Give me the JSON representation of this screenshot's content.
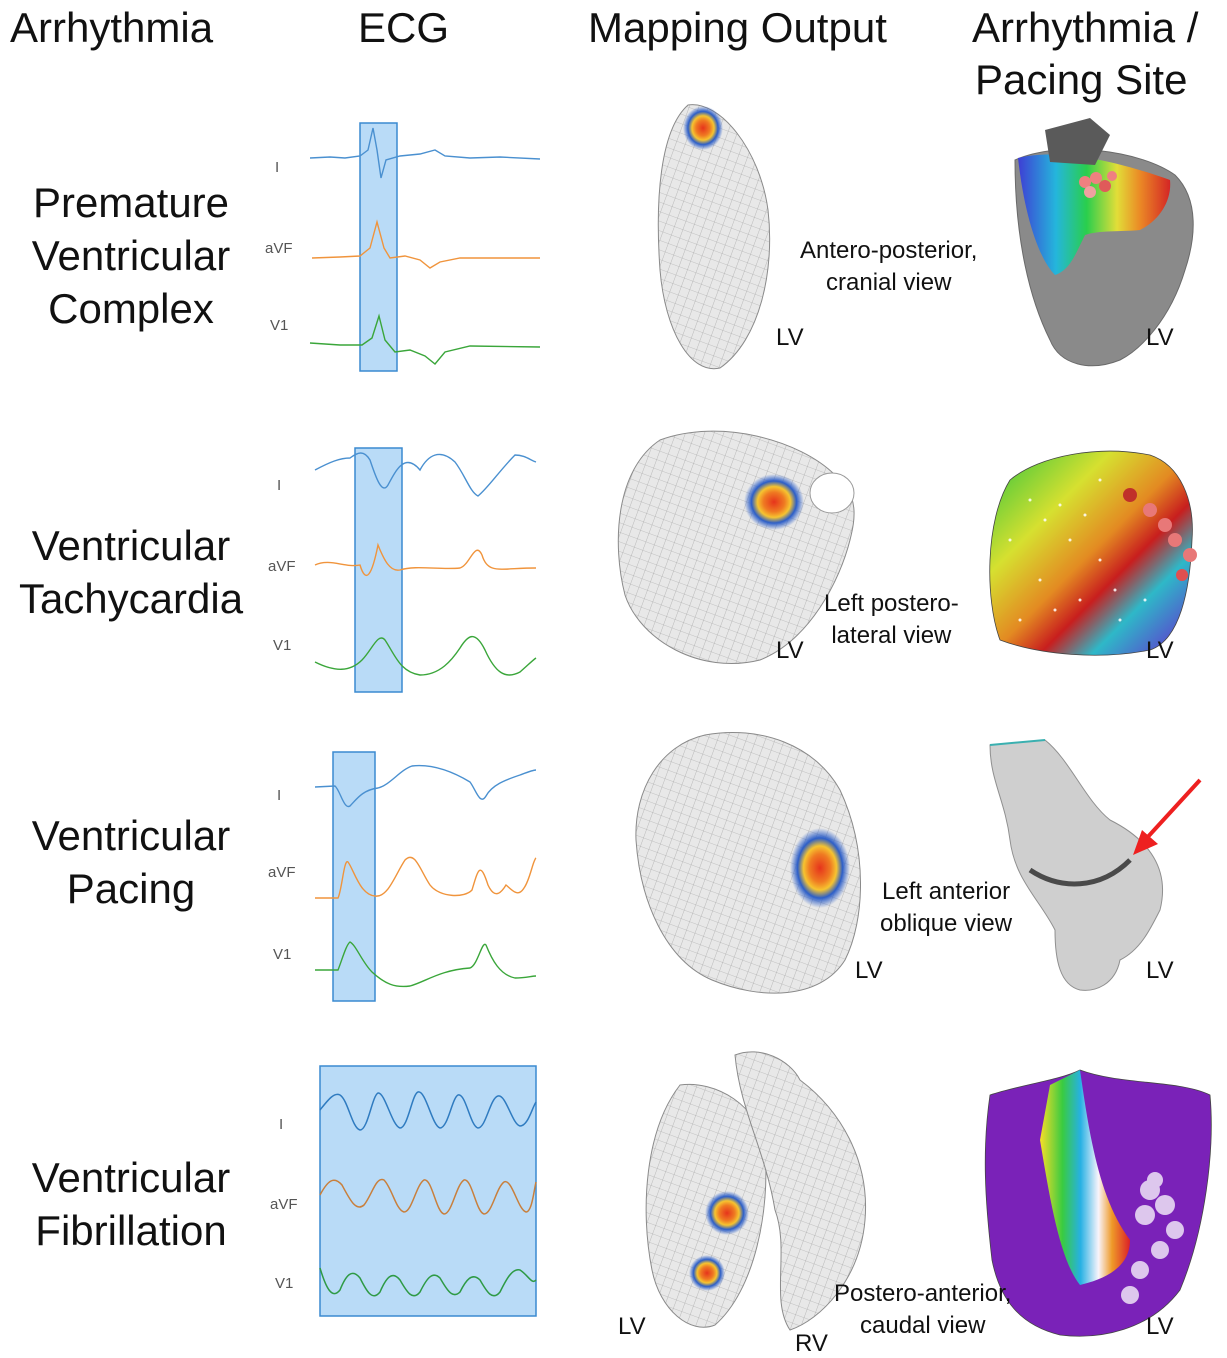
{
  "headers": {
    "arrhythmia": "Arrhythmia",
    "ecg": "ECG",
    "mapping": "Mapping Output",
    "site_line1": "Arrhythmia /",
    "site_line2": "Pacing Site"
  },
  "lead_names": [
    "I",
    "aVF",
    "V1"
  ],
  "colors": {
    "lead_I": "#4a90d0",
    "lead_aVF": "#f0943c",
    "lead_V1": "#3aa63a",
    "highlight_fill": "#a8d2f5",
    "highlight_stroke": "#3a8ad0",
    "mesh": "#d9d9d9",
    "hotspot_core": "#e6341c",
    "hotspot_mid": "#f6c430",
    "hotspot_edge": "#2c5ec8"
  },
  "rows": [
    {
      "title_lines": [
        "Premature",
        "Ventricular",
        "Complex"
      ],
      "view_lines": [
        "Antero-posterior,",
        "cranial view"
      ],
      "mapping_label": "LV",
      "site_label": "LV"
    },
    {
      "title_lines": [
        "Ventricular",
        "Tachycardia"
      ],
      "view_lines": [
        "Left postero-",
        "lateral view"
      ],
      "mapping_label": "LV",
      "site_label": "LV"
    },
    {
      "title_lines": [
        "Ventricular",
        "Pacing"
      ],
      "view_lines": [
        "Left anterior",
        "oblique view"
      ],
      "mapping_label": "LV",
      "site_label": "LV"
    },
    {
      "title_lines": [
        "Ventricular",
        "Fibrillation"
      ],
      "view_lines": [
        "Postero-anterior,",
        "caudal view"
      ],
      "mapping_label": "LV",
      "mapping_label_rv": "RV",
      "site_label": "LV"
    }
  ]
}
